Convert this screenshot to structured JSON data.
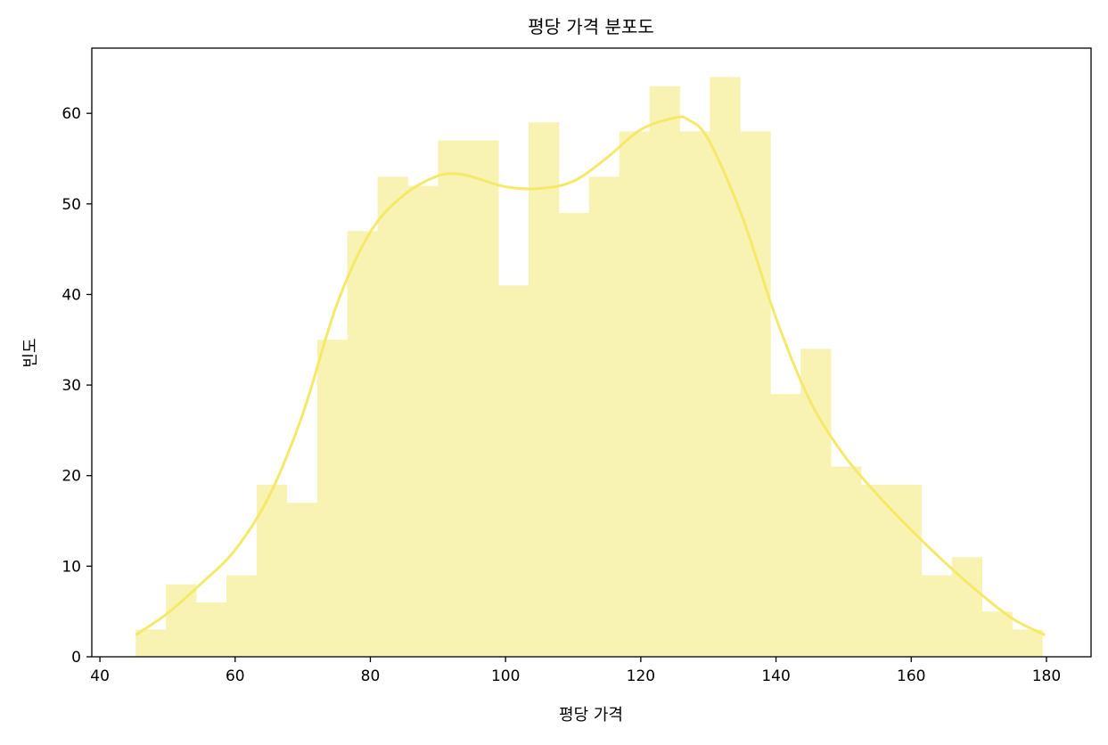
{
  "chart_data": {
    "type": "bar",
    "title": "평당 가격 분포도",
    "xlabel": "평당 가격",
    "ylabel": "빈도",
    "xlim": [
      38.8,
      186.6
    ],
    "ylim": [
      0,
      67.2
    ],
    "xticks": [
      40,
      60,
      80,
      100,
      120,
      140,
      160,
      180
    ],
    "yticks": [
      0,
      10,
      20,
      30,
      40,
      50,
      60
    ],
    "grid": false,
    "bin_start": 45.3,
    "bin_width": 4.47,
    "values": [
      3,
      8,
      6,
      9,
      19,
      17,
      35,
      47,
      53,
      52,
      57,
      57,
      41,
      59,
      49,
      53,
      58,
      63,
      58,
      64,
      58,
      29,
      34,
      21,
      19,
      19,
      9,
      11,
      5,
      3
    ],
    "kde": {
      "x": [
        45.3,
        50,
        55,
        60,
        65,
        70,
        75,
        80,
        85,
        90,
        93,
        95,
        100,
        105,
        110,
        115,
        120,
        125,
        127,
        130,
        135,
        140,
        145,
        150,
        155,
        160,
        165,
        170,
        175,
        179.8
      ],
      "y": [
        2.4,
        4.8,
        8.1,
        11.8,
        17.7,
        26.8,
        38.8,
        46.9,
        51.0,
        53.1,
        53.3,
        53.0,
        51.9,
        51.7,
        52.5,
        55.1,
        58.2,
        59.5,
        59.3,
        57.1,
        48.6,
        37.4,
        28.3,
        22.3,
        17.9,
        14.0,
        10.4,
        7.1,
        4.2,
        2.4
      ]
    },
    "colors": {
      "bar": "#f9f3b3",
      "kde": "#f5e96a",
      "axis": "#000000"
    }
  }
}
